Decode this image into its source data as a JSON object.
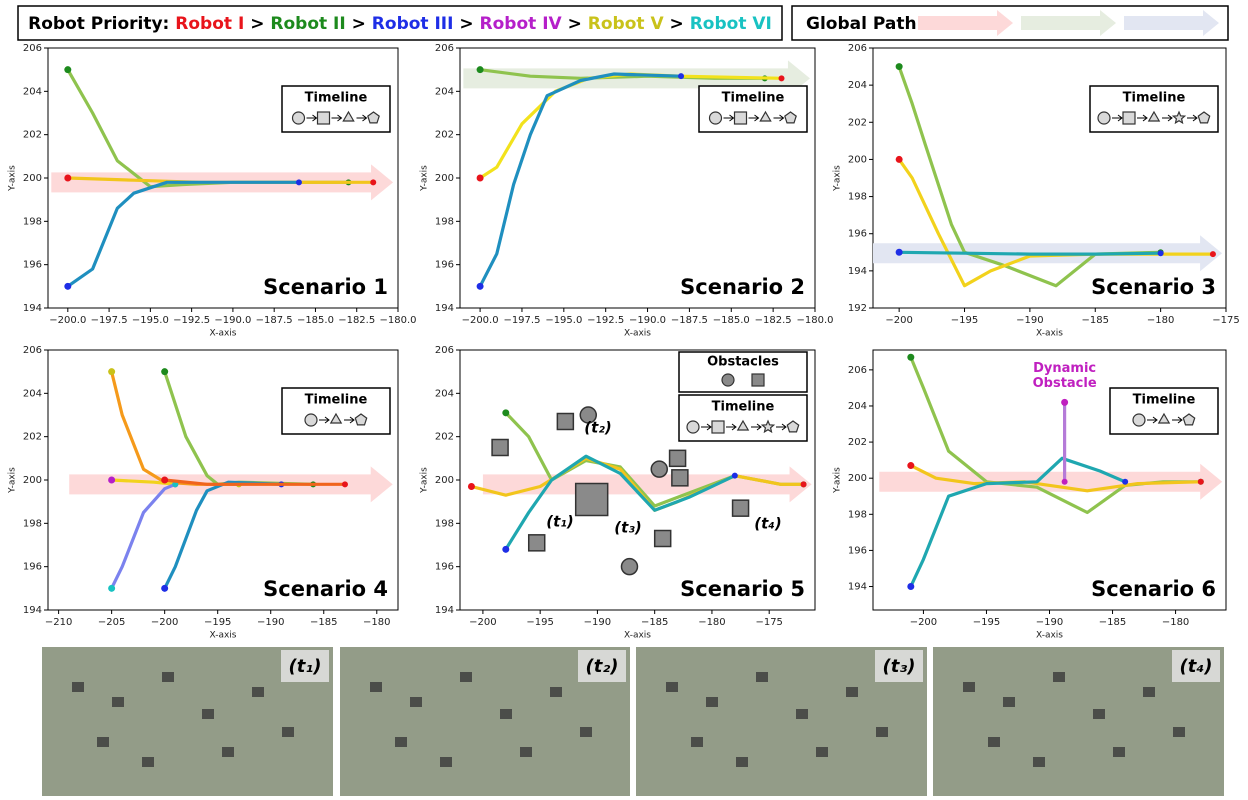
{
  "header": {
    "priority_title": "Robot Priority:",
    "separator": ">",
    "robots": [
      {
        "name": "Robot I",
        "color": "#e8141b"
      },
      {
        "name": "Robot II",
        "color": "#1d8a1d"
      },
      {
        "name": "Robot III",
        "color": "#1e2ee6"
      },
      {
        "name": "Robot IV",
        "color": "#b51fc9"
      },
      {
        "name": "Robot V",
        "color": "#c9c21a"
      },
      {
        "name": "Robot VI",
        "color": "#18c2c2"
      }
    ],
    "global_path_title": "Global Path:",
    "global_path_colors": [
      "#fdd9d9",
      "#e6ede0",
      "#e2e6f2"
    ]
  },
  "snapshots": [
    "(t₁)",
    "(t₂)",
    "(t₃)",
    "(t₄)"
  ],
  "chart_data": [
    {
      "type": "line",
      "title": "Scenario 1",
      "xlabel": "X-axis",
      "ylabel": "Y-axis",
      "legend_title": "Timeline",
      "xlim": [
        -201.2,
        -180
      ],
      "ylim": [
        194,
        206
      ],
      "xticks": [
        {
          "value": -200,
          "label": "−200.0"
        },
        {
          "value": -197.5,
          "label": "−197.5"
        },
        {
          "value": -195,
          "label": "−195.0"
        },
        {
          "value": -192.5,
          "label": "−192.5"
        },
        {
          "value": -190,
          "label": "−190.0"
        },
        {
          "value": -187.5,
          "label": "−187.5"
        },
        {
          "value": -185,
          "label": "−185.0"
        },
        {
          "value": -182.5,
          "label": "−182.5"
        },
        {
          "value": -180,
          "label": "−180.0"
        }
      ],
      "yticks": [
        194,
        196,
        198,
        200,
        202,
        204,
        206
      ],
      "global_paths": [
        {
          "color": "#fdd9d9",
          "x": [
            -201,
            -180.3
          ],
          "y": [
            199.8,
            199.8
          ]
        }
      ],
      "series": [
        {
          "color": "#8fc34e",
          "marker_color": "#1d8a1d",
          "x": [
            -200,
            -198.5,
            -197,
            -195,
            -193,
            -190,
            -186,
            -183
          ],
          "y": [
            205,
            203,
            200.8,
            199.6,
            199.7,
            199.8,
            199.8,
            199.8
          ]
        },
        {
          "color": "#f2c51c",
          "marker_color": "#e8141b",
          "x": [
            -200,
            -196,
            -192,
            -188,
            -184,
            -181.5
          ],
          "y": [
            200,
            199.9,
            199.8,
            199.8,
            199.8,
            199.8
          ]
        },
        {
          "color": "#1f8fbf",
          "marker_color": "#1e2ee6",
          "x": [
            -200,
            -198.5,
            -197,
            -196,
            -194,
            -190,
            -186
          ],
          "y": [
            195,
            195.8,
            198.6,
            199.3,
            199.8,
            199.8,
            199.8
          ]
        }
      ]
    },
    {
      "type": "line",
      "title": "Scenario 2",
      "xlabel": "X-axis",
      "ylabel": "Y-axis",
      "legend_title": "Timeline",
      "xlim": [
        -201.2,
        -180
      ],
      "ylim": [
        194,
        206
      ],
      "xticks": [
        {
          "value": -200,
          "label": "−200.0"
        },
        {
          "value": -197.5,
          "label": "−197.5"
        },
        {
          "value": -195,
          "label": "−195.0"
        },
        {
          "value": -192.5,
          "label": "−192.5"
        },
        {
          "value": -190,
          "label": "−190.0"
        },
        {
          "value": -187.5,
          "label": "−187.5"
        },
        {
          "value": -185,
          "label": "−185.0"
        },
        {
          "value": -182.5,
          "label": "−182.5"
        },
        {
          "value": -180,
          "label": "−180.0"
        }
      ],
      "yticks": [
        194,
        196,
        198,
        200,
        202,
        204,
        206
      ],
      "global_paths": [
        {
          "color": "#e6ede0",
          "x": [
            -201,
            -180.3
          ],
          "y": [
            204.6,
            204.6
          ]
        }
      ],
      "series": [
        {
          "color": "#8fc34e",
          "marker_color": "#1d8a1d",
          "x": [
            -200,
            -197,
            -194,
            -190,
            -186,
            -183
          ],
          "y": [
            205,
            204.7,
            204.6,
            204.7,
            204.6,
            204.6
          ]
        },
        {
          "color": "#f2e21c",
          "marker_color": "#e8141b",
          "x": [
            -200,
            -199,
            -197.5,
            -195.5,
            -193.5,
            -191,
            -188,
            -182
          ],
          "y": [
            200,
            200.5,
            202.5,
            204,
            204.6,
            204.8,
            204.7,
            204.6
          ]
        },
        {
          "color": "#1f8fbf",
          "marker_color": "#1e2ee6",
          "x": [
            -200,
            -199,
            -198,
            -197,
            -196,
            -194,
            -192,
            -188
          ],
          "y": [
            195,
            196.5,
            199.7,
            202,
            203.8,
            204.5,
            204.8,
            204.7
          ]
        }
      ]
    },
    {
      "type": "line",
      "title": "Scenario 3",
      "xlabel": "X-axis",
      "ylabel": "Y-axis",
      "legend_title": "Timeline",
      "xlim": [
        -202,
        -175
      ],
      "ylim": [
        192,
        206
      ],
      "xticks": [
        {
          "value": -200,
          "label": "−200"
        },
        {
          "value": -195,
          "label": "−195"
        },
        {
          "value": -190,
          "label": "−190"
        },
        {
          "value": -185,
          "label": "−185"
        },
        {
          "value": -180,
          "label": "−180"
        },
        {
          "value": -175,
          "label": "−175"
        }
      ],
      "yticks": [
        192,
        194,
        196,
        198,
        200,
        202,
        204,
        206
      ],
      "global_paths": [
        {
          "color": "#e2e6f2",
          "x": [
            -202,
            -175.3
          ],
          "y": [
            194.95,
            194.95
          ]
        }
      ],
      "series": [
        {
          "color": "#8fc34e",
          "marker_color": "#1d8a1d",
          "x": [
            -200,
            -199,
            -198,
            -196,
            -195,
            -192,
            -188,
            -185,
            -180
          ],
          "y": [
            205,
            203,
            200.8,
            196.5,
            195,
            194.3,
            193.2,
            194.9,
            195
          ]
        },
        {
          "color": "#f2d21c",
          "marker_color": "#e8141b",
          "x": [
            -200,
            -199,
            -197,
            -195,
            -193,
            -190,
            -185,
            -180,
            -176
          ],
          "y": [
            200,
            199,
            196,
            193.2,
            194,
            194.8,
            194.9,
            194.9,
            194.9
          ]
        },
        {
          "color": "#1fa7b0",
          "marker_color": "#1e2ee6",
          "x": [
            -200,
            -195,
            -190,
            -185,
            -180
          ],
          "y": [
            195,
            194.95,
            194.9,
            194.9,
            194.95
          ]
        }
      ]
    },
    {
      "type": "line",
      "title": "Scenario 4",
      "xlabel": "X-axis",
      "ylabel": "Y-axis",
      "legend_title": "Timeline",
      "xlim": [
        -211,
        -178
      ],
      "ylim": [
        194,
        206
      ],
      "xticks": [
        {
          "value": -210,
          "label": "−210"
        },
        {
          "value": -205,
          "label": "−205"
        },
        {
          "value": -200,
          "label": "−200"
        },
        {
          "value": -195,
          "label": "−195"
        },
        {
          "value": -190,
          "label": "−190"
        },
        {
          "value": -185,
          "label": "−185"
        },
        {
          "value": -180,
          "label": "−180"
        }
      ],
      "yticks": [
        194,
        196,
        198,
        200,
        202,
        204,
        206
      ],
      "global_paths": [
        {
          "color": "#fdd9d9",
          "x": [
            -209,
            -178.5
          ],
          "y": [
            199.8,
            199.8
          ]
        }
      ],
      "series": [
        {
          "color": "#f59a1b",
          "marker_color": "#c9c21a",
          "x": [
            -205,
            -204,
            -202,
            -200,
            -197,
            -193
          ],
          "y": [
            205,
            203,
            200.5,
            199.9,
            199.8,
            199.8
          ]
        },
        {
          "color": "#8fc34e",
          "marker_color": "#1d8a1d",
          "x": [
            -200,
            -198,
            -196,
            -195,
            -193,
            -186
          ],
          "y": [
            205,
            202,
            200.2,
            199.8,
            199.9,
            199.8
          ]
        },
        {
          "color": "#f2d21c",
          "marker_color": "#b51fc9",
          "x": [
            -205,
            -201,
            -199
          ],
          "y": [
            200,
            199.9,
            199.8
          ]
        },
        {
          "color": "#7b82ee",
          "marker_color": "#18c2c2",
          "x": [
            -205,
            -204,
            -202,
            -200,
            -199
          ],
          "y": [
            195,
            196,
            198.5,
            199.6,
            199.8
          ]
        },
        {
          "color": "#1f8fbf",
          "marker_color": "#1e2ee6",
          "x": [
            -200,
            -199,
            -197,
            -196,
            -194,
            -189
          ],
          "y": [
            195,
            196,
            198.6,
            199.5,
            199.9,
            199.8
          ]
        },
        {
          "color": "#f0641c",
          "marker_color": "#e8141b",
          "x": [
            -200,
            -196,
            -192,
            -186,
            -183
          ],
          "y": [
            200,
            199.8,
            199.8,
            199.8,
            199.8
          ]
        }
      ]
    },
    {
      "type": "line",
      "title": "Scenario 5",
      "xlabel": "X-axis",
      "ylabel": "Y-axis",
      "legend_title": "Timeline",
      "obstacles_title": "Obstacles",
      "xlim": [
        -202,
        -171
      ],
      "ylim": [
        194,
        206
      ],
      "xticks": [
        {
          "value": -200,
          "label": "−200"
        },
        {
          "value": -195,
          "label": "−195"
        },
        {
          "value": -190,
          "label": "−190"
        },
        {
          "value": -185,
          "label": "−185"
        },
        {
          "value": -180,
          "label": "−180"
        },
        {
          "value": -175,
          "label": "−175"
        }
      ],
      "yticks": [
        194,
        196,
        198,
        200,
        202,
        204,
        206
      ],
      "annotations": [
        "(t₁)",
        "(t₂)",
        "(t₃)",
        "(t₄)"
      ],
      "global_paths": [
        {
          "color": "#fdd9d9",
          "x": [
            -200,
            -171.3
          ],
          "y": [
            199.8,
            199.8
          ]
        }
      ],
      "obstacles": [
        {
          "shape": "circle",
          "x": -190.8,
          "y": 203
        },
        {
          "shape": "circle",
          "x": -184.6,
          "y": 200.5
        },
        {
          "shape": "circle",
          "x": -187.2,
          "y": 196
        },
        {
          "shape": "square",
          "x": -198.5,
          "y": 201.5
        },
        {
          "shape": "square",
          "x": -192.8,
          "y": 202.7
        },
        {
          "shape": "square",
          "x": -183,
          "y": 201
        },
        {
          "shape": "square",
          "x": -182.8,
          "y": 200.1
        },
        {
          "shape": "square",
          "x": -190.5,
          "y": 199.1
        },
        {
          "shape": "square",
          "x": -195.3,
          "y": 197.1
        },
        {
          "shape": "square",
          "x": -184.3,
          "y": 197.3
        },
        {
          "shape": "square",
          "x": -177.5,
          "y": 198.7
        }
      ],
      "series": [
        {
          "color": "#8fc34e",
          "marker_color": "#1d8a1d",
          "x": [
            -198,
            -196,
            -194,
            -191,
            -188,
            -185,
            -182,
            -178,
            -174,
            -172
          ],
          "y": [
            203.1,
            202,
            200,
            200.9,
            200.6,
            198.8,
            199.4,
            200.2,
            199.8,
            199.8
          ]
        },
        {
          "color": "#f2c51c",
          "marker_color": "#e8141b",
          "x": [
            -201,
            -198,
            -195,
            -191,
            -188,
            -185,
            -183,
            -178,
            -174,
            -172
          ],
          "y": [
            199.7,
            199.3,
            199.7,
            201,
            200.5,
            198.6,
            199,
            200.2,
            199.8,
            199.8
          ]
        },
        {
          "color": "#1fa7b0",
          "marker_color": "#1e2ee6",
          "x": [
            -198,
            -196,
            -194,
            -191,
            -188,
            -185,
            -182,
            -178
          ],
          "y": [
            196.8,
            198.5,
            200,
            201.1,
            200.3,
            198.6,
            199.2,
            200.2
          ]
        }
      ]
    },
    {
      "type": "line",
      "title": "Scenario 6",
      "xlabel": "X-axis",
      "ylabel": "Y-axis",
      "legend_title": "Timeline",
      "annotation": [
        "Dynamic",
        "Obstacle"
      ],
      "xlim": [
        -204,
        -176
      ],
      "ylim": [
        192.7,
        207.1
      ],
      "xticks": [
        {
          "value": -200,
          "label": "−200"
        },
        {
          "value": -195,
          "label": "−195"
        },
        {
          "value": -190,
          "label": "−190"
        },
        {
          "value": -185,
          "label": "−185"
        },
        {
          "value": -180,
          "label": "−180"
        }
      ],
      "yticks": [
        194,
        196,
        198,
        200,
        202,
        204,
        206
      ],
      "global_paths": [
        {
          "color": "#fdd9d9",
          "x": [
            -203.5,
            -176.3
          ],
          "y": [
            199.8,
            199.8
          ]
        }
      ],
      "series": [
        {
          "color": "#8fc34e",
          "marker_color": "#1d8a1d",
          "x": [
            -201,
            -200,
            -198,
            -195,
            -191,
            -187,
            -184,
            -181,
            -178
          ],
          "y": [
            206.7,
            205,
            201.5,
            199.8,
            199.5,
            198.1,
            199.6,
            199.8,
            199.8
          ]
        },
        {
          "color": "#f2c51c",
          "marker_color": "#e8141b",
          "x": [
            -201,
            -199,
            -196,
            -192,
            -189,
            -187,
            -183,
            -178
          ],
          "y": [
            200.7,
            200,
            199.7,
            199.8,
            199.5,
            199.3,
            199.7,
            199.8
          ]
        },
        {
          "color": "#1fa7b0",
          "marker_color": "#1e2ee6",
          "x": [
            -201,
            -200,
            -198,
            -195,
            -191,
            -189,
            -186,
            -184
          ],
          "y": [
            194,
            195.5,
            199,
            199.7,
            199.8,
            201.1,
            200.4,
            199.8
          ]
        },
        {
          "color": "#b57bd8",
          "marker_color": "#c020c0",
          "x": [
            -188.8,
            -188.8
          ],
          "y": [
            204.2,
            199.8
          ]
        }
      ]
    }
  ]
}
